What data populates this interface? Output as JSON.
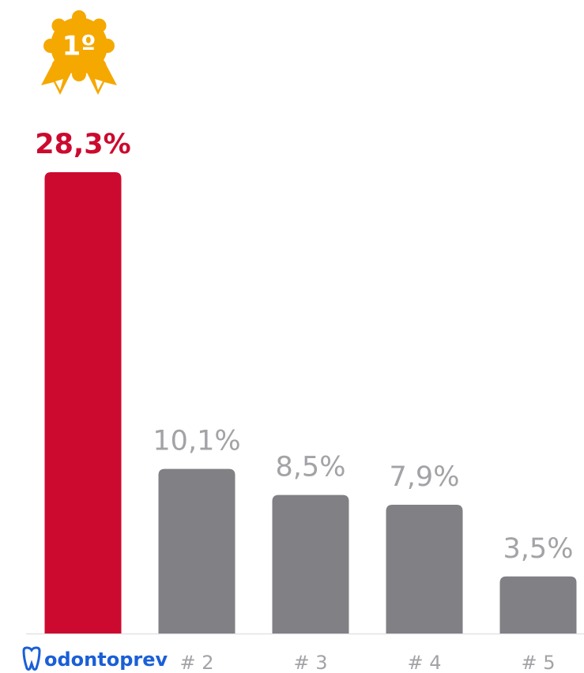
{
  "chart_data": {
    "type": "bar",
    "badge": "1º",
    "categories": [
      "odontoprev",
      "# 2",
      "# 3",
      "# 4",
      "# 5"
    ],
    "values": [
      28.3,
      10.1,
      8.5,
      7.9,
      3.5
    ],
    "value_labels": [
      "28,3%",
      "10,1%",
      "8,5%",
      "7,9%",
      "3,5%"
    ],
    "colors": [
      "#cc0a2f",
      "#808085",
      "#808085",
      "#808085",
      "#808085"
    ],
    "label_colors": [
      "#cc0a2f",
      "#a3a3a7",
      "#a3a3a7",
      "#a3a3a7",
      "#a3a3a7"
    ]
  }
}
